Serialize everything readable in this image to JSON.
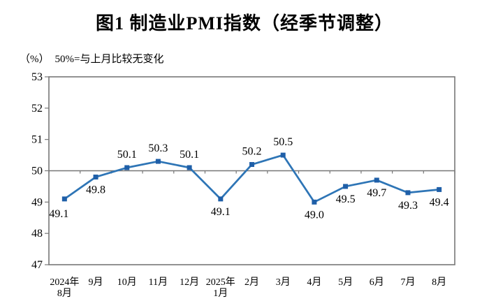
{
  "chart_data": {
    "type": "line",
    "title": "图1  制造业PMI指数（经季节调整）",
    "unit_label": "（%）",
    "note": "50%=与上月比较无变化",
    "categories": [
      [
        "2024年",
        "8月"
      ],
      [
        "9月"
      ],
      [
        "10月"
      ],
      [
        "11月"
      ],
      [
        "12月"
      ],
      [
        "2025年",
        "1月"
      ],
      [
        "2月"
      ],
      [
        "3月"
      ],
      [
        "4月"
      ],
      [
        "5月"
      ],
      [
        "6月"
      ],
      [
        "7月"
      ],
      [
        "8月"
      ]
    ],
    "values": [
      49.1,
      49.8,
      50.1,
      50.3,
      50.1,
      49.1,
      50.2,
      50.5,
      49.0,
      49.5,
      49.7,
      49.3,
      49.4
    ],
    "data_labels": [
      "49.1",
      "49.8",
      "50.1",
      "50.3",
      "50.1",
      "49.1",
      "50.2",
      "50.5",
      "49.0",
      "49.5",
      "49.7",
      "49.3",
      "49.4"
    ],
    "label_positions": [
      "below-left",
      "below",
      "above",
      "above",
      "above",
      "below",
      "above",
      "above",
      "below",
      "below",
      "below",
      "below",
      "below"
    ],
    "y_ticks": [
      47,
      48,
      49,
      50,
      51,
      52,
      53
    ],
    "ylim": [
      47,
      53
    ],
    "reference_value": 50,
    "grid": "off",
    "legend": "none",
    "colors": {
      "line": "#2E75B6",
      "marker": "#1F5FA8",
      "axis": "#777777",
      "text": "#000000"
    }
  }
}
